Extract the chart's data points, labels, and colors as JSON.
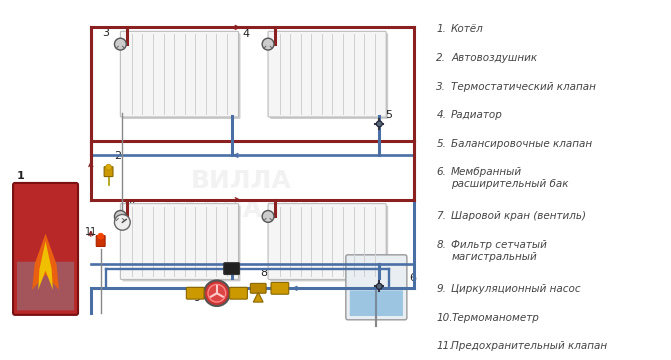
{
  "bg_color": "#ffffff",
  "pipe_red": "#8b2020",
  "pipe_blue": "#4a6fa5",
  "pipe_gray": "#7a8a9a",
  "boiler_red": "#c0282e",
  "boiler_grad_top": "#cc3333",
  "boiler_grad_bot": "#6688aa",
  "radiator_face": "#f0f0f0",
  "radiator_edge": "#aaaaaa",
  "radiator_fin": "#cccccc",
  "tank_body": "#e0e8ee",
  "tank_water": "#a0c8e0",
  "legend_color": "#444444",
  "label_color": "#222222",
  "font_size": 7.5,
  "legend_items": [
    [
      "1.",
      "Котёл"
    ],
    [
      "2.",
      "Автовоздушник"
    ],
    [
      "3.",
      "Термостатический клапан"
    ],
    [
      "4.",
      "Радиатор"
    ],
    [
      "5.",
      "Балансировочные клапан"
    ],
    [
      "6.",
      "Мембранный\nрасширительный бак"
    ],
    [
      "7.",
      "Шаровой кран (вентиль)"
    ],
    [
      "8.",
      "Фильтр сетчатый\nмагистральный"
    ],
    [
      "9.",
      "Циркуляционный насос"
    ],
    [
      "10.",
      "Термоманометр"
    ],
    [
      "11.",
      "Предохранительный клапан"
    ]
  ]
}
